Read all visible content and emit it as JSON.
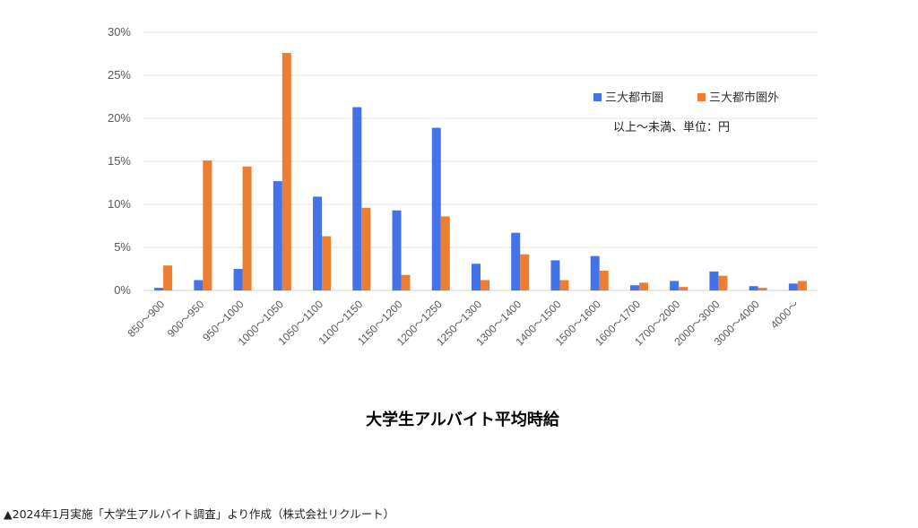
{
  "chart_data": {
    "type": "bar",
    "categories": [
      "850～900",
      "900～950",
      "950～1000",
      "1000～1050",
      "1050～1100",
      "1100～1150",
      "1150～1200",
      "1200～1250",
      "1250～1300",
      "1300～1400",
      "1400～1500",
      "1500～1600",
      "1600～1700",
      "1700～2000",
      "2000～3000",
      "3000～4000",
      "4000～"
    ],
    "series": [
      {
        "name": "三大都市圏",
        "color": "#4472e8",
        "values": [
          0.3,
          1.2,
          2.5,
          12.7,
          10.9,
          21.3,
          9.3,
          18.9,
          3.1,
          6.7,
          3.5,
          4.0,
          0.6,
          1.1,
          2.2,
          0.5,
          0.8
        ]
      },
      {
        "name": "三大都市圏外",
        "color": "#ed7d31",
        "values": [
          2.9,
          15.1,
          14.4,
          27.6,
          6.3,
          9.6,
          1.8,
          8.6,
          1.2,
          4.2,
          1.2,
          2.3,
          0.9,
          0.4,
          1.7,
          0.3,
          1.1
        ]
      }
    ],
    "yticks": [
      "0%",
      "5%",
      "10%",
      "15%",
      "20%",
      "25%",
      "30%"
    ],
    "ylim": [
      0,
      30
    ],
    "xlabel": "大学生アルバイト平均時給",
    "ylabel": "",
    "note": "以上～未満、単位：円",
    "grid": true,
    "legend_position": "top-right"
  },
  "caption": "▲2024年1月実施「大学生アルバイト調査」より作成（株式会社リクルート）"
}
